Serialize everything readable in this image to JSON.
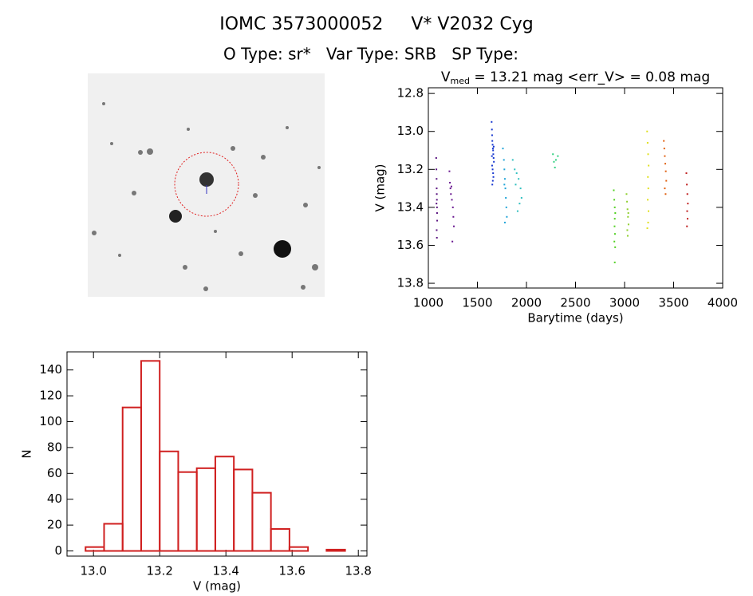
{
  "header": {
    "title": "IOMC 3573000052     V* V2032 Cyg",
    "subtitle": "O Type: sr*   Var Type: SRB   SP Type:"
  },
  "chart_data": [
    {
      "type": "scatter",
      "title": [
        "V",
        "med",
        " = 13.21 mag <err_V> = 0.08 mag"
      ],
      "x_label": "Barytime (days)",
      "y_label": "V (mag)",
      "xlim": [
        1000,
        4000
      ],
      "xticks": [
        1000,
        1500,
        2000,
        2500,
        3000,
        3500,
        4000
      ],
      "ylim": [
        12.77,
        13.825
      ],
      "y_reversed": true,
      "yticks": [
        12.8,
        {
          "value": 13.0,
          "label": "13.0"
        },
        13.2,
        13.4,
        13.6,
        13.8
      ],
      "series": [
        {
          "color": "#5a1480",
          "x": [
            1080,
            1082,
            1084,
            1085,
            1086,
            1087,
            1088,
            1089,
            1090,
            1085,
            1087,
            1083
          ],
          "y": [
            13.14,
            13.2,
            13.25,
            13.3,
            13.33,
            13.36,
            13.4,
            13.43,
            13.47,
            13.52,
            13.56,
            13.38
          ]
        },
        {
          "color": "#6a1890",
          "x": [
            1215,
            1220,
            1225,
            1230,
            1240,
            1250,
            1255,
            1260,
            1245,
            1235
          ],
          "y": [
            13.21,
            13.27,
            13.3,
            13.33,
            13.36,
            13.4,
            13.45,
            13.5,
            13.58,
            13.29
          ]
        },
        {
          "color": "#1838d0",
          "x": [
            1645,
            1648,
            1650,
            1652,
            1655,
            1658,
            1660,
            1662,
            1665,
            1668,
            1650,
            1655,
            1660,
            1663,
            1657,
            1652,
            1648,
            1666
          ],
          "y": [
            12.95,
            12.99,
            13.02,
            13.05,
            13.07,
            13.09,
            13.1,
            13.12,
            13.14,
            13.16,
            13.18,
            13.2,
            13.22,
            13.24,
            13.26,
            13.28,
            13.13,
            13.08
          ]
        },
        {
          "color": "#20a4d8",
          "x": [
            1760,
            1770,
            1775,
            1780,
            1785,
            1790,
            1795,
            1800,
            1780,
            1775
          ],
          "y": [
            13.09,
            13.15,
            13.2,
            13.25,
            13.3,
            13.35,
            13.4,
            13.45,
            13.48,
            13.28
          ]
        },
        {
          "color": "#30c0c0",
          "x": [
            1860,
            1880,
            1900,
            1920,
            1940,
            1950,
            1930,
            1910,
            1890
          ],
          "y": [
            13.15,
            13.2,
            13.22,
            13.25,
            13.3,
            13.35,
            13.38,
            13.42,
            13.28
          ]
        },
        {
          "color": "#30d080",
          "x": [
            2270,
            2280,
            2290,
            2300,
            2320
          ],
          "y": [
            13.12,
            13.16,
            13.19,
            13.15,
            13.13
          ]
        },
        {
          "color": "#50d020",
          "x": [
            2890,
            2895,
            2900,
            2905,
            2900,
            2898,
            2902,
            2896,
            2904,
            2900
          ],
          "y": [
            13.31,
            13.36,
            13.4,
            13.43,
            13.46,
            13.5,
            13.54,
            13.58,
            13.61,
            13.69
          ]
        },
        {
          "color": "#90d030",
          "x": [
            3020,
            3025,
            3030,
            3035,
            3040,
            3028,
            3032,
            3038
          ],
          "y": [
            13.33,
            13.37,
            13.41,
            13.45,
            13.49,
            13.52,
            13.55,
            13.43
          ]
        },
        {
          "color": "#e0e020",
          "x": [
            3230,
            3235,
            3240,
            3245,
            3238,
            3242,
            3236,
            3244,
            3240,
            3232
          ],
          "y": [
            13.0,
            13.06,
            13.12,
            13.18,
            13.24,
            13.3,
            13.36,
            13.42,
            13.48,
            13.51
          ]
        },
        {
          "color": "#e06010",
          "x": [
            3400,
            3405,
            3410,
            3415,
            3420,
            3425,
            3410,
            3418
          ],
          "y": [
            13.05,
            13.09,
            13.13,
            13.17,
            13.21,
            13.26,
            13.3,
            13.33
          ]
        },
        {
          "color": "#c02020",
          "x": [
            3630,
            3635,
            3640,
            3645,
            3638,
            3642,
            3636
          ],
          "y": [
            13.22,
            13.28,
            13.33,
            13.38,
            13.42,
            13.46,
            13.5
          ]
        }
      ]
    },
    {
      "type": "histogram",
      "x_label": "V (mag)",
      "y_label": "N",
      "color": "#d02020",
      "bins": [
        12.976,
        13.032,
        13.088,
        13.144,
        13.2,
        13.256,
        13.312,
        13.368,
        13.424,
        13.48,
        13.536,
        13.592,
        13.648,
        13.704,
        13.76
      ],
      "counts": [
        3,
        21,
        111,
        147,
        77,
        61,
        64,
        73,
        63,
        45,
        17,
        3,
        0,
        1
      ],
      "xlim": [
        12.92,
        13.826
      ],
      "xticks": [
        {
          "value": 13.0,
          "label": "13.0"
        },
        13.2,
        13.4,
        13.6,
        13.8
      ],
      "ylim": [
        -4,
        154
      ],
      "yticks": [
        0,
        20,
        40,
        60,
        80,
        100,
        120,
        140
      ]
    }
  ]
}
